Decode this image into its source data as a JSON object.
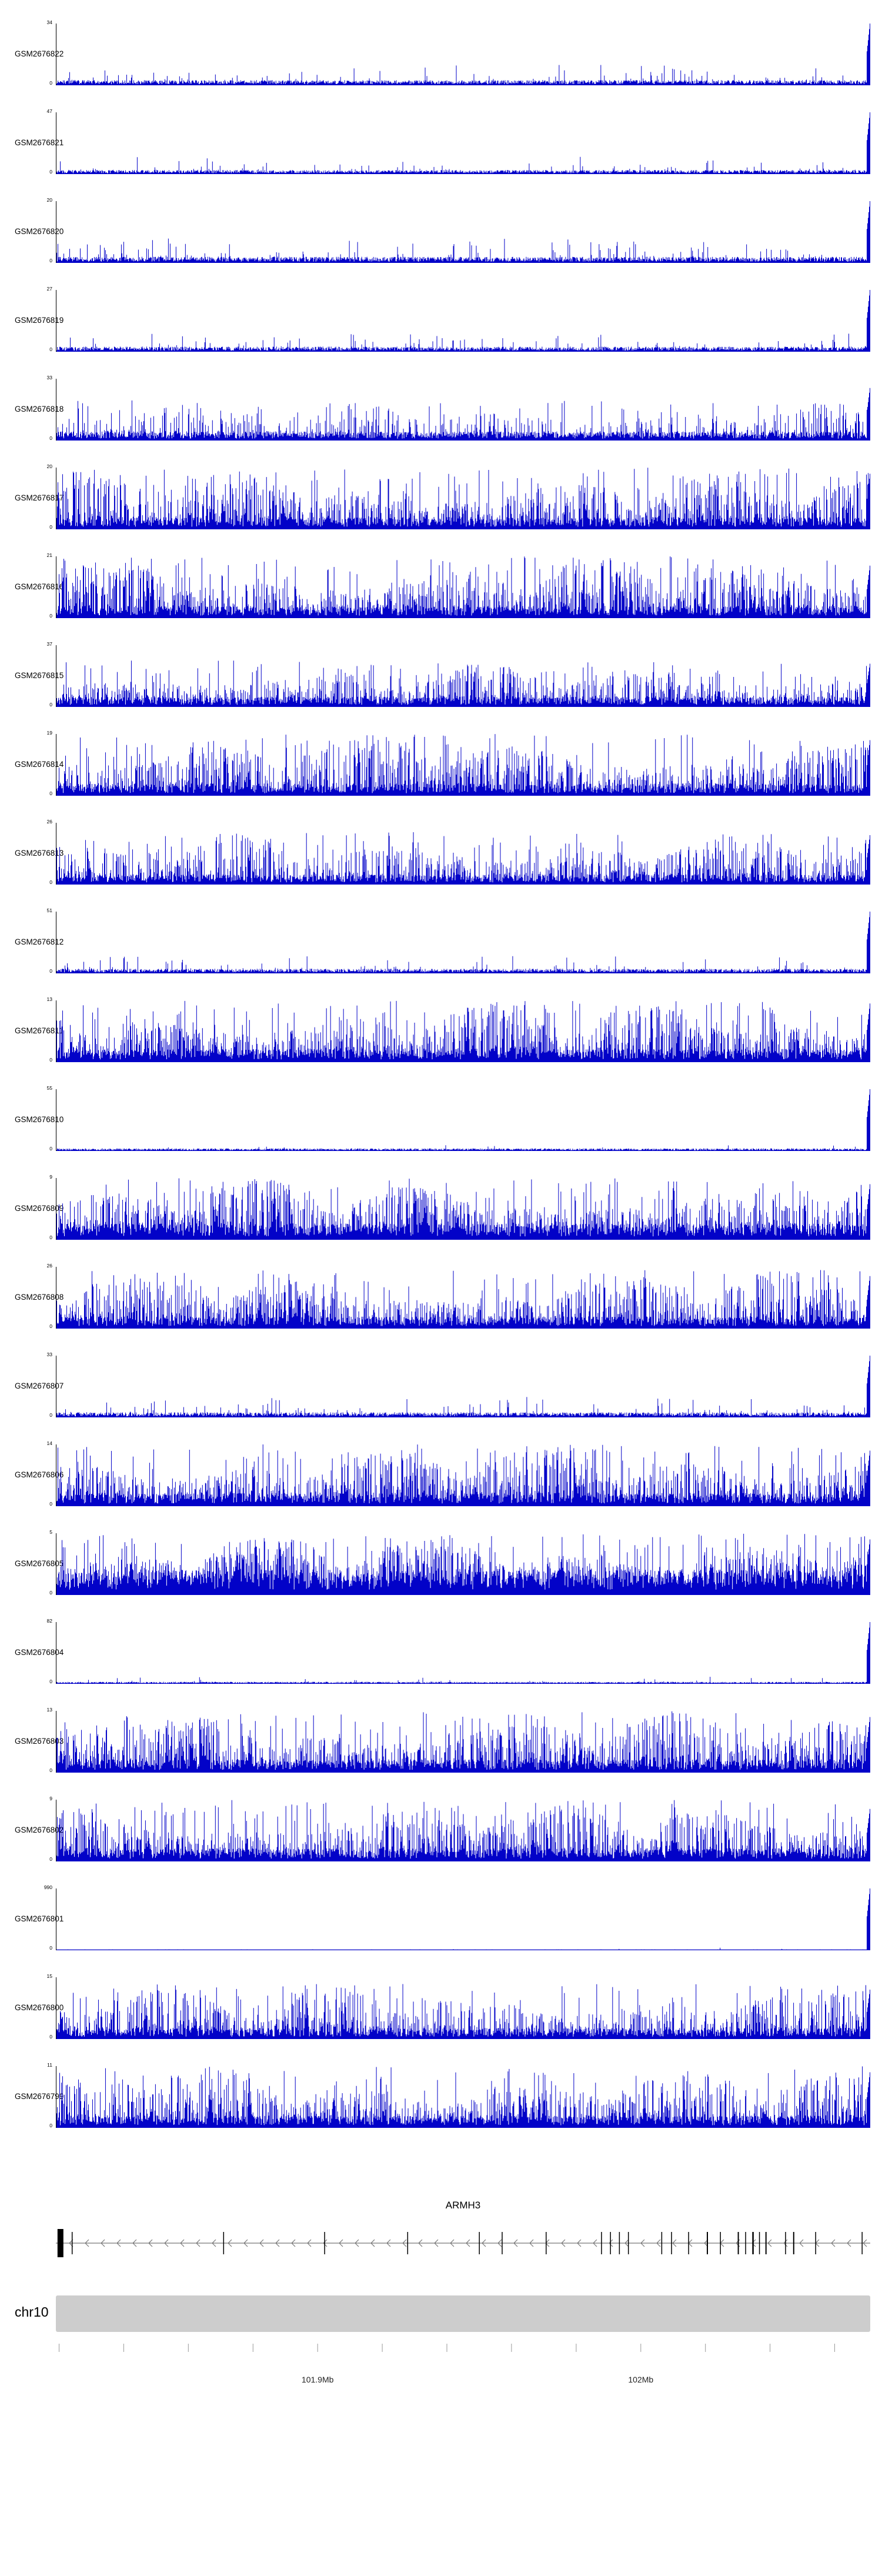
{
  "chromosome": {
    "label": "chr10"
  },
  "ruler": {
    "labels": [
      {
        "text": "101.9Mb",
        "mb": 101.9
      },
      {
        "text": "102Mb",
        "mb": 102.0
      }
    ]
  },
  "chart_data": {
    "type": "area",
    "description": "Stacked genome-browser coverage tracks (blue signal histograms) for 24 GEO samples over chr10 around gene ARMH3",
    "signal_color": "#0202c8",
    "y_min_label": "0",
    "x_axis": {
      "chromosome": "chr10",
      "unit": "Mb",
      "approx_start_mb": 101.819,
      "approx_end_mb": 102.071,
      "first_tick_mb": 101.82,
      "tick_step_mb": 0.02,
      "tick_labels": [
        "101.9Mb",
        "102Mb"
      ]
    },
    "tracks": [
      {
        "name": "GSM2676822",
        "ymax": "34",
        "profile": "sparse-low-with-right-edge-peak",
        "base": 0.05,
        "spike_prob": 0.07,
        "spike_max": 0.33,
        "right_spike": 1,
        "seed": 1
      },
      {
        "name": "GSM2676821",
        "ymax": "47",
        "profile": "sparse-low-with-right-edge-peak",
        "base": 0.04,
        "spike_prob": 0.05,
        "spike_max": 0.3,
        "right_spike": 1,
        "seed": 2
      },
      {
        "name": "GSM2676820",
        "ymax": "20",
        "profile": "sparse-with-right-edge-peak",
        "base": 0.06,
        "spike_prob": 0.1,
        "spike_max": 0.4,
        "right_spike": 1,
        "seed": 3
      },
      {
        "name": "GSM2676819",
        "ymax": "27",
        "profile": "sparse-low-with-right-edge-peak",
        "base": 0.05,
        "spike_prob": 0.07,
        "spike_max": 0.3,
        "right_spike": 1,
        "seed": 4
      },
      {
        "name": "GSM2676818",
        "ymax": "33",
        "profile": "moderate",
        "base": 0.09,
        "spike_prob": 0.28,
        "spike_max": 0.65,
        "right_spike": 0.85,
        "seed": 5
      },
      {
        "name": "GSM2676817",
        "ymax": "20",
        "profile": "dense-tall",
        "base": 0.12,
        "spike_prob": 0.5,
        "spike_max": 1,
        "right_spike": 0.9,
        "seed": 6
      },
      {
        "name": "GSM2676816",
        "ymax": "21",
        "profile": "dense-tall",
        "base": 0.12,
        "spike_prob": 0.5,
        "spike_max": 1,
        "right_spike": 0.85,
        "seed": 7
      },
      {
        "name": "GSM2676815",
        "ymax": "37",
        "profile": "dense-medium",
        "base": 0.1,
        "spike_prob": 0.45,
        "spike_max": 0.75,
        "right_spike": 0.7,
        "seed": 8
      },
      {
        "name": "GSM2676814",
        "ymax": "19",
        "profile": "dense-tall",
        "base": 0.12,
        "spike_prob": 0.5,
        "spike_max": 1,
        "right_spike": 0.9,
        "seed": 9
      },
      {
        "name": "GSM2676813",
        "ymax": "26",
        "profile": "dense-medium",
        "base": 0.1,
        "spike_prob": 0.45,
        "spike_max": 0.85,
        "right_spike": 0.8,
        "seed": 10
      },
      {
        "name": "GSM2676812",
        "ymax": "51",
        "profile": "sparse-low-with-right-edge-peak",
        "base": 0.045,
        "spike_prob": 0.06,
        "spike_max": 0.28,
        "right_spike": 1,
        "seed": 11
      },
      {
        "name": "GSM2676811",
        "ymax": "13",
        "profile": "dense-tall",
        "base": 0.13,
        "spike_prob": 0.55,
        "spike_max": 1,
        "right_spike": 0.95,
        "seed": 12
      },
      {
        "name": "GSM2676810",
        "ymax": "55",
        "profile": "flat-with-right-edge-peak",
        "base": 0.025,
        "spike_prob": 0.02,
        "spike_max": 0.12,
        "right_spike": 1,
        "seed": 13
      },
      {
        "name": "GSM2676809",
        "ymax": "9",
        "profile": "very-dense-tall",
        "base": 0.16,
        "spike_prob": 0.6,
        "spike_max": 1,
        "right_spike": 0.9,
        "seed": 14
      },
      {
        "name": "GSM2676808",
        "ymax": "26",
        "profile": "dense-tall",
        "base": 0.12,
        "spike_prob": 0.5,
        "spike_max": 0.95,
        "right_spike": 0.85,
        "seed": 15
      },
      {
        "name": "GSM2676807",
        "ymax": "33",
        "profile": "sparse-with-right-edge-peak",
        "base": 0.05,
        "spike_prob": 0.08,
        "spike_max": 0.33,
        "right_spike": 1,
        "seed": 16
      },
      {
        "name": "GSM2676806",
        "ymax": "14",
        "profile": "dense-tall",
        "base": 0.13,
        "spike_prob": 0.55,
        "spike_max": 1,
        "right_spike": 0.9,
        "seed": 17
      },
      {
        "name": "GSM2676805",
        "ymax": "5",
        "profile": "very-dense-solid",
        "base": 0.25,
        "spike_prob": 0.7,
        "spike_max": 1,
        "right_spike": 0.9,
        "seed": 18
      },
      {
        "name": "GSM2676804",
        "ymax": "82",
        "profile": "flat-with-right-edge-peak",
        "base": 0.02,
        "spike_prob": 0.025,
        "spike_max": 0.12,
        "right_spike": 1,
        "seed": 19
      },
      {
        "name": "GSM2676803",
        "ymax": "13",
        "profile": "dense-tall",
        "base": 0.13,
        "spike_prob": 0.55,
        "spike_max": 1,
        "right_spike": 0.9,
        "seed": 20
      },
      {
        "name": "GSM2676802",
        "ymax": "9",
        "profile": "dense-tall",
        "base": 0.13,
        "spike_prob": 0.55,
        "spike_max": 1,
        "right_spike": 0.85,
        "seed": 21
      },
      {
        "name": "GSM2676801",
        "ymax": "990",
        "profile": "flat-single-right-spike",
        "base": 0.008,
        "spike_prob": 0.004,
        "spike_max": 0.05,
        "right_spike": 1,
        "seed": 22
      },
      {
        "name": "GSM2676800",
        "ymax": "15",
        "profile": "dense-medium",
        "base": 0.11,
        "spike_prob": 0.45,
        "spike_max": 0.9,
        "right_spike": 0.8,
        "seed": 23
      },
      {
        "name": "GSM2676799",
        "ymax": "11",
        "profile": "dense-tall",
        "base": 0.12,
        "spike_prob": 0.5,
        "spike_max": 1,
        "right_spike": 0.9,
        "seed": 24
      }
    ],
    "gene_annotation": {
      "name": "ARMH3",
      "strand": "-",
      "strand_marker": "<",
      "start_box_frac": 0.002,
      "exons": [
        [
          0.02,
          1.5
        ],
        [
          0.206,
          1.5
        ],
        [
          0.33,
          1.5
        ],
        [
          0.432,
          1.5
        ],
        [
          0.52,
          1.5
        ],
        [
          0.548,
          1.5
        ],
        [
          0.602,
          1.5
        ],
        [
          0.67,
          1.5
        ],
        [
          0.681,
          1.5
        ],
        [
          0.692,
          1.5
        ],
        [
          0.703,
          1.5
        ],
        [
          0.744,
          1.5
        ],
        [
          0.756,
          1.5
        ],
        [
          0.777,
          1.5
        ],
        [
          0.8,
          2
        ],
        [
          0.816,
          1.5
        ],
        [
          0.838,
          2
        ],
        [
          0.847,
          1.5
        ],
        [
          0.856,
          2.5
        ],
        [
          0.864,
          1.5
        ],
        [
          0.872,
          2
        ],
        [
          0.896,
          1.5
        ],
        [
          0.906,
          2
        ],
        [
          0.933,
          1.5
        ],
        [
          0.99,
          1.5
        ]
      ]
    }
  }
}
